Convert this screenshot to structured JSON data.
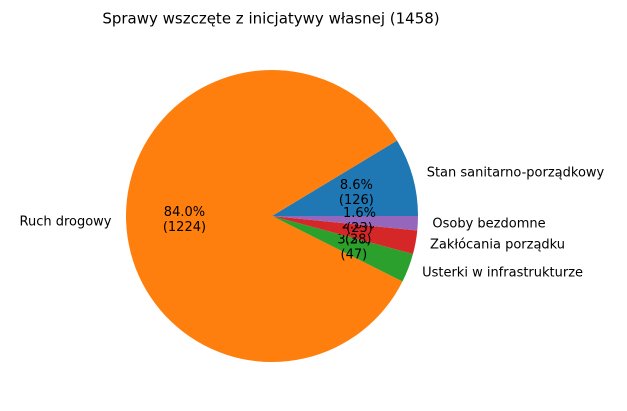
{
  "chart_data": {
    "type": "pie",
    "title": "Sprawy wszczęte z inicjatywy własnej (1458)",
    "categories": [
      "Stan sanitarno-porządkowy",
      "Ruch drogowy",
      "Usterki w infrastrukturze",
      "Zakłócania porządku",
      "Osoby bezdomne"
    ],
    "values": [
      126,
      1224,
      47,
      38,
      23
    ],
    "value_labels": [
      "8.6%\n(126)",
      "84.0%\n(1224)",
      "3.2%\n(47)",
      "2.6%\n(38)",
      "1.6%\n(23)"
    ],
    "colors": [
      "#1f77b4",
      "#ff7f0e",
      "#2ca02c",
      "#d62728",
      "#9467bd"
    ]
  }
}
